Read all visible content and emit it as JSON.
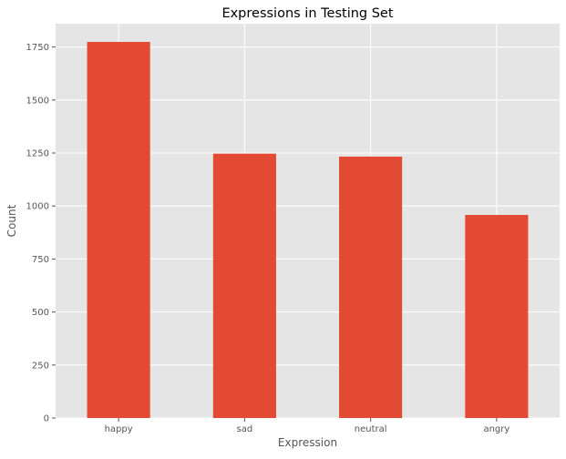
{
  "chart_data": {
    "type": "bar",
    "title": "Expressions in Testing Set",
    "xlabel": "Expression",
    "ylabel": "Count",
    "categories": [
      "happy",
      "sad",
      "neutral",
      "angry"
    ],
    "values": [
      1774,
      1247,
      1233,
      958
    ],
    "ylim": [
      0,
      1860
    ],
    "yticks": [
      0,
      250,
      500,
      750,
      1000,
      1250,
      1500,
      1750
    ],
    "grid": true,
    "legend": "none",
    "colors": {
      "bar": "#E24A33",
      "plot_background": "#E5E5E5",
      "grid": "#FFFFFF",
      "text": "#555555",
      "title": "#000000"
    }
  }
}
